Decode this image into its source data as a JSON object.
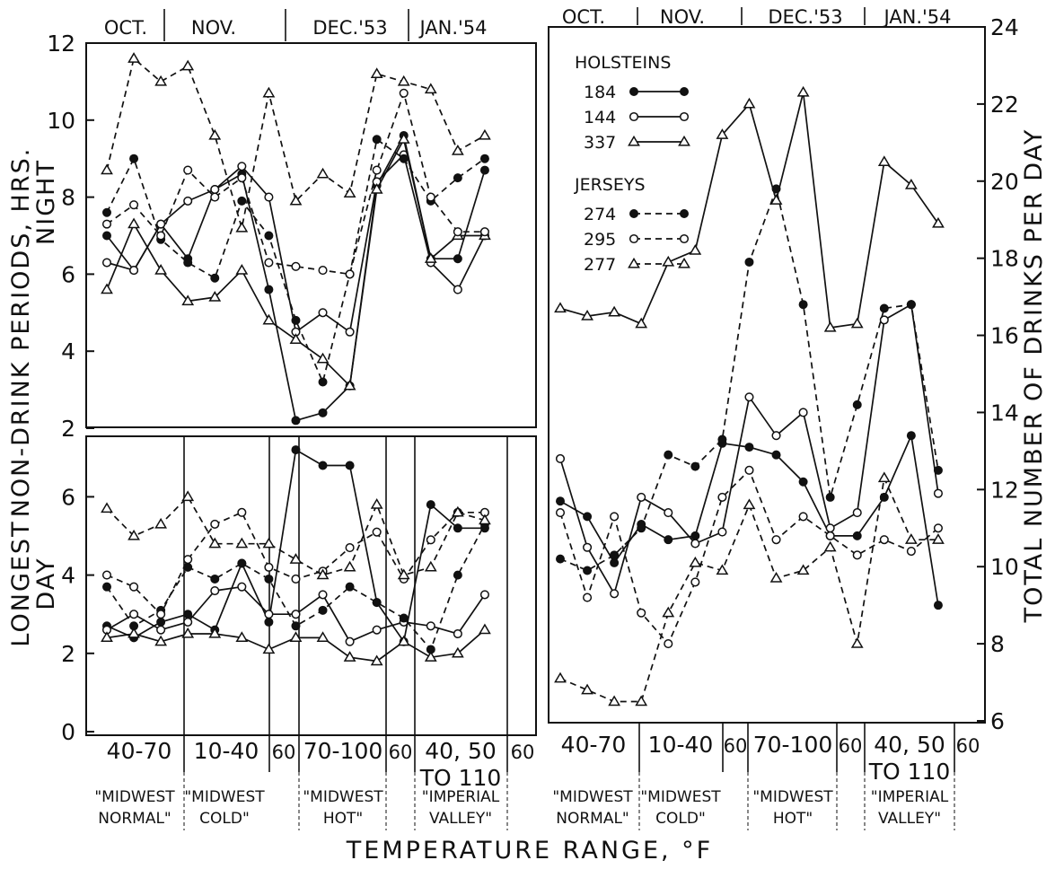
{
  "figure": {
    "left_ylabel_top": "NON-DRINK PERIODS, HRS.",
    "left_ylabel_top_sub": "NIGHT",
    "left_ylabel_bottom": "LONGEST",
    "left_ylabel_bottom_sub": "DAY",
    "right_ylabel": "TOTAL NUMBER OF DRINKS PER DAY",
    "xlabel": "TEMPERATURE RANGE, °F",
    "months": [
      "OCT.",
      "NOV.",
      "DEC.'53",
      "JAN.'54"
    ],
    "ranges": [
      "40-70",
      "10-40",
      "60",
      "70-100",
      "60",
      "40, 50",
      "TO 110",
      "60"
    ],
    "conditions": [
      {
        "line1": "\"MIDWEST",
        "line2": "NORMAL\""
      },
      {
        "line1": "\"MIDWEST",
        "line2": "COLD\""
      },
      {
        "line1": "\"MIDWEST",
        "line2": "HOT\""
      },
      {
        "line1": "\"IMPERIAL",
        "line2": "VALLEY\""
      }
    ],
    "legend": {
      "group1": "HOLSTEINS",
      "group2": "JERSEYS",
      "items": [
        {
          "label": "184",
          "style": "solid",
          "marker": "filled-circle"
        },
        {
          "label": "144",
          "style": "solid",
          "marker": "open-circle"
        },
        {
          "label": "337",
          "style": "solid",
          "marker": "open-triangle"
        },
        {
          "label": "274",
          "style": "dashed",
          "marker": "filled-circle"
        },
        {
          "label": "295",
          "style": "dashed",
          "marker": "open-circle"
        },
        {
          "label": "277",
          "style": "dashed",
          "marker": "open-triangle"
        }
      ]
    }
  },
  "chart_data": [
    {
      "type": "line",
      "panel": "night",
      "ylabel": "NON-DRINK PERIODS, HRS. NIGHT",
      "ylim": [
        2,
        12
      ],
      "yticks": [
        2,
        4,
        6,
        8,
        10,
        12
      ],
      "x": [
        1,
        2,
        3,
        4,
        5,
        6,
        7,
        8,
        9,
        10,
        11,
        12,
        13,
        14,
        15,
        16
      ],
      "series": [
        {
          "name": "184",
          "style": "solid",
          "marker": "filled-circle",
          "values": [
            7.0,
            6.1,
            7.3,
            6.4,
            8.2,
            8.6,
            5.6,
            2.2,
            2.4,
            3.1,
            8.3,
            9.6,
            6.4,
            6.4,
            8.7,
            null
          ]
        },
        {
          "name": "144",
          "style": "solid",
          "marker": "open-circle",
          "values": [
            6.3,
            6.1,
            7.3,
            7.9,
            8.2,
            8.8,
            8.0,
            4.5,
            5.0,
            4.5,
            8.4,
            9.1,
            6.3,
            5.6,
            7.0,
            null
          ]
        },
        {
          "name": "337",
          "style": "solid",
          "marker": "open-triangle",
          "values": [
            5.6,
            7.3,
            6.1,
            5.3,
            5.4,
            6.1,
            4.8,
            4.3,
            3.8,
            3.1,
            8.2,
            9.5,
            6.4,
            7.0,
            7.0,
            null
          ]
        },
        {
          "name": "274",
          "style": "dashed",
          "marker": "filled-circle",
          "values": [
            7.6,
            9.0,
            6.9,
            6.3,
            5.9,
            7.9,
            7.0,
            4.8,
            3.2,
            6.0,
            9.5,
            9.0,
            7.9,
            8.5,
            9.0,
            null
          ]
        },
        {
          "name": "295",
          "style": "dashed",
          "marker": "open-circle",
          "values": [
            7.3,
            7.8,
            7.0,
            8.7,
            8.0,
            8.5,
            6.3,
            6.2,
            6.1,
            6.0,
            8.7,
            10.7,
            8.0,
            7.1,
            7.1,
            null
          ]
        },
        {
          "name": "277",
          "style": "dashed",
          "marker": "open-triangle",
          "values": [
            8.7,
            11.6,
            11.0,
            11.4,
            9.6,
            7.2,
            10.7,
            7.9,
            8.6,
            8.1,
            11.2,
            11.0,
            10.8,
            9.2,
            9.6,
            null
          ]
        }
      ]
    },
    {
      "type": "line",
      "panel": "longest-day",
      "ylabel": "LONGEST DAY",
      "ylim": [
        0,
        7.5
      ],
      "yticks": [
        0,
        2,
        4,
        6
      ],
      "x": [
        1,
        2,
        3,
        4,
        5,
        6,
        7,
        8,
        9,
        10,
        11,
        12,
        13,
        14,
        15,
        16
      ],
      "series": [
        {
          "name": "184",
          "style": "solid",
          "marker": "filled-circle",
          "values": [
            2.7,
            2.4,
            2.8,
            3.0,
            2.6,
            4.3,
            2.8,
            7.2,
            6.8,
            6.8,
            3.3,
            2.3,
            5.8,
            5.2,
            5.2,
            null
          ]
        },
        {
          "name": "144",
          "style": "solid",
          "marker": "open-circle",
          "values": [
            2.6,
            3.0,
            2.6,
            2.8,
            3.6,
            3.7,
            3.0,
            3.0,
            3.5,
            2.3,
            2.6,
            2.8,
            2.7,
            2.5,
            3.5,
            null
          ]
        },
        {
          "name": "337",
          "style": "solid",
          "marker": "open-triangle",
          "values": [
            2.4,
            2.5,
            2.3,
            2.5,
            2.5,
            2.4,
            2.1,
            2.4,
            2.4,
            1.9,
            1.8,
            2.3,
            1.9,
            2.0,
            2.6,
            null
          ]
        },
        {
          "name": "274",
          "style": "dashed",
          "marker": "filled-circle",
          "values": [
            3.7,
            2.7,
            3.1,
            4.2,
            3.9,
            4.3,
            3.9,
            2.7,
            3.1,
            3.7,
            3.3,
            2.9,
            2.1,
            4.0,
            5.3,
            null
          ]
        },
        {
          "name": "295",
          "style": "dashed",
          "marker": "open-circle",
          "values": [
            4.0,
            3.7,
            3.0,
            4.4,
            5.3,
            5.6,
            4.2,
            3.9,
            4.1,
            4.7,
            5.1,
            3.9,
            4.9,
            5.6,
            5.6,
            null
          ]
        },
        {
          "name": "277",
          "style": "dashed",
          "marker": "open-triangle",
          "values": [
            5.7,
            5.0,
            5.3,
            6.0,
            4.8,
            4.8,
            4.8,
            4.4,
            4.0,
            4.2,
            5.8,
            4.0,
            4.2,
            5.6,
            5.4,
            null
          ]
        }
      ]
    },
    {
      "type": "line",
      "panel": "drinks",
      "ylabel": "TOTAL NUMBER OF DRINKS PER DAY",
      "ylim": [
        6,
        24
      ],
      "yticks": [
        6,
        8,
        10,
        12,
        14,
        16,
        18,
        20,
        22,
        24
      ],
      "x": [
        1,
        2,
        3,
        4,
        5,
        6,
        7,
        8,
        9,
        10,
        11,
        12,
        13,
        14,
        15,
        16
      ],
      "series": [
        {
          "name": "184",
          "style": "solid",
          "marker": "filled-circle",
          "values": [
            11.7,
            11.3,
            10.1,
            11.1,
            10.7,
            10.8,
            13.2,
            13.1,
            12.9,
            12.2,
            10.8,
            10.8,
            11.8,
            13.4,
            9.0,
            null
          ]
        },
        {
          "name": "144",
          "style": "solid",
          "marker": "open-circle",
          "values": [
            12.8,
            10.5,
            9.3,
            11.8,
            11.4,
            10.6,
            10.9,
            14.4,
            13.4,
            14.0,
            11.0,
            11.4,
            16.4,
            16.8,
            11.9,
            null
          ]
        },
        {
          "name": "337",
          "style": "solid",
          "marker": "open-triangle",
          "values": [
            16.7,
            16.5,
            16.6,
            16.3,
            17.9,
            18.2,
            21.2,
            22.0,
            19.5,
            22.3,
            16.2,
            16.3,
            20.5,
            19.9,
            18.9,
            null
          ]
        },
        {
          "name": "274",
          "style": "dashed",
          "marker": "filled-circle",
          "values": [
            10.2,
            9.9,
            10.3,
            11.0,
            12.9,
            12.6,
            13.3,
            17.9,
            19.8,
            16.8,
            11.8,
            14.2,
            16.7,
            16.8,
            12.5,
            null
          ]
        },
        {
          "name": "295",
          "style": "dashed",
          "marker": "open-circle",
          "values": [
            11.4,
            9.2,
            11.3,
            8.8,
            8.0,
            9.6,
            11.8,
            12.5,
            10.7,
            11.3,
            10.8,
            10.3,
            10.7,
            10.4,
            11.0,
            null
          ]
        },
        {
          "name": "277",
          "style": "dashed",
          "marker": "open-triangle",
          "values": [
            7.1,
            6.8,
            6.5,
            6.5,
            8.8,
            10.1,
            9.9,
            11.6,
            9.7,
            9.9,
            10.5,
            8.0,
            12.3,
            10.7,
            10.7,
            null
          ]
        }
      ]
    }
  ]
}
